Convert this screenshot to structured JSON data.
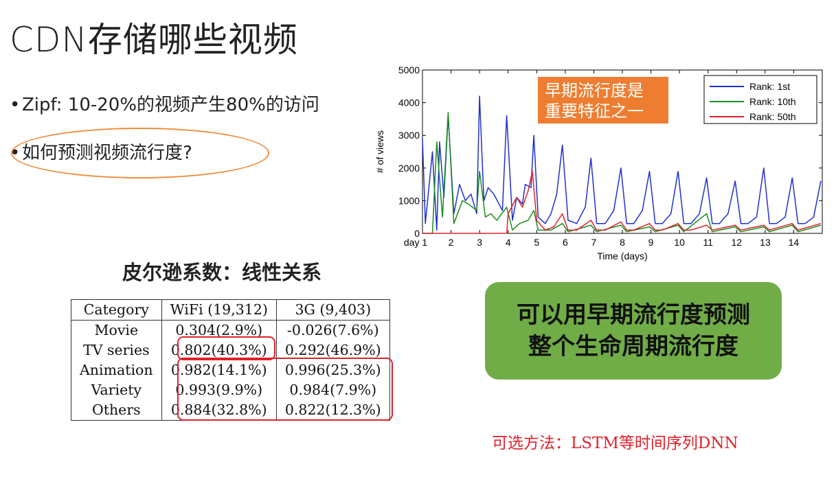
{
  "title": "CDN存储哪些视频",
  "bullets": [
    "Zipf: 10-20%的视频产生80%的访问",
    "如何预测视频流行度?"
  ],
  "bullet_symbol": "•",
  "pearson_title": "皮尔逊系数：线性关系",
  "table": {
    "headers": [
      "Category",
      "WiFi (19,312)",
      "3G (9,403)"
    ],
    "rows": [
      [
        "Movie",
        "0.304(2.9%)",
        "-0.026(7.6%)"
      ],
      [
        "TV series",
        "0.802(40.3%)",
        "0.292(46.9%)"
      ],
      [
        "Animation",
        "0.982(14.1%)",
        "0.996(25.3%)"
      ],
      [
        "Variety",
        "0.993(9.9%)",
        "0.984(7.9%)"
      ],
      [
        "Others",
        "0.884(32.8%)",
        "0.822(12.3%)"
      ]
    ]
  },
  "callout_orange": [
    "早期流行度是",
    "重要特征之一"
  ],
  "callout_green": [
    "可以用早期流行度预测",
    "整个生命周期流行度"
  ],
  "method": "可选方法：LSTM等时间序列DNN",
  "colors": {
    "orange": "#ee7d31",
    "green": "#70ad47",
    "red": "#e0202a",
    "blue": "#1f2fd0",
    "dark_green": "#1a8a1a"
  },
  "chart_data": {
    "type": "line",
    "xlabel": "Time (days)",
    "ylabel": "# of views",
    "xlim": [
      1,
      15
    ],
    "ylim": [
      0,
      5000
    ],
    "x_tick_labels": [
      "day 1",
      "2",
      "3",
      "4",
      "5",
      "6",
      "7",
      "8",
      "9",
      "10",
      "11",
      "12",
      "13",
      "14"
    ],
    "y_ticks": [
      0,
      1000,
      2000,
      3000,
      4000,
      5000
    ],
    "legend_position": "top-right",
    "series": [
      {
        "name": "Rank: 1st",
        "color": "#1f2fd0",
        "points": [
          [
            1,
            2900
          ],
          [
            1.1,
            300
          ],
          [
            1.35,
            2500
          ],
          [
            1.5,
            100
          ],
          [
            1.6,
            2800
          ],
          [
            1.75,
            1100
          ],
          [
            1.9,
            3600
          ],
          [
            2.1,
            600
          ],
          [
            2.3,
            1500
          ],
          [
            2.5,
            1000
          ],
          [
            2.7,
            1200
          ],
          [
            2.9,
            600
          ],
          [
            3.0,
            4200
          ],
          [
            3.15,
            1000
          ],
          [
            3.3,
            1400
          ],
          [
            3.5,
            1200
          ],
          [
            3.8,
            700
          ],
          [
            3.95,
            3600
          ],
          [
            4.15,
            400
          ],
          [
            4.3,
            1100
          ],
          [
            4.5,
            900
          ],
          [
            4.6,
            1500
          ],
          [
            4.8,
            1400
          ],
          [
            4.9,
            3000
          ],
          [
            5.05,
            500
          ],
          [
            5.3,
            300
          ],
          [
            5.5,
            600
          ],
          [
            5.7,
            1200
          ],
          [
            5.9,
            2700
          ],
          [
            6.1,
            400
          ],
          [
            6.4,
            300
          ],
          [
            6.7,
            800
          ],
          [
            6.9,
            2300
          ],
          [
            7.1,
            300
          ],
          [
            7.4,
            300
          ],
          [
            7.7,
            700
          ],
          [
            7.95,
            2000
          ],
          [
            8.15,
            300
          ],
          [
            8.4,
            300
          ],
          [
            8.7,
            700
          ],
          [
            8.95,
            1900
          ],
          [
            9.15,
            300
          ],
          [
            9.4,
            300
          ],
          [
            9.7,
            600
          ],
          [
            9.95,
            1900
          ],
          [
            10.15,
            300
          ],
          [
            10.4,
            300
          ],
          [
            10.7,
            600
          ],
          [
            10.95,
            1700
          ],
          [
            11.15,
            300
          ],
          [
            11.4,
            300
          ],
          [
            11.7,
            600
          ],
          [
            11.95,
            1600
          ],
          [
            12.15,
            300
          ],
          [
            12.4,
            300
          ],
          [
            12.7,
            500
          ],
          [
            12.95,
            2000
          ],
          [
            13.15,
            300
          ],
          [
            13.4,
            300
          ],
          [
            13.7,
            500
          ],
          [
            13.95,
            1700
          ],
          [
            14.15,
            300
          ],
          [
            14.4,
            300
          ],
          [
            14.7,
            500
          ],
          [
            14.95,
            1600
          ]
        ]
      },
      {
        "name": "Rank: 10th",
        "color": "#1a8a1a",
        "points": [
          [
            1,
            0
          ],
          [
            1.35,
            0
          ],
          [
            1.5,
            2800
          ],
          [
            1.7,
            500
          ],
          [
            1.9,
            3700
          ],
          [
            2.1,
            300
          ],
          [
            2.4,
            1000
          ],
          [
            2.6,
            900
          ],
          [
            2.9,
            700
          ],
          [
            3.0,
            1900
          ],
          [
            3.2,
            500
          ],
          [
            3.4,
            600
          ],
          [
            3.6,
            400
          ],
          [
            3.95,
            800
          ],
          [
            4.15,
            100
          ],
          [
            4.4,
            300
          ],
          [
            4.7,
            400
          ],
          [
            4.9,
            700
          ],
          [
            5.05,
            100
          ],
          [
            5.5,
            100
          ],
          [
            5.9,
            300
          ],
          [
            6.1,
            50
          ],
          [
            6.9,
            250
          ],
          [
            7.1,
            50
          ],
          [
            7.95,
            250
          ],
          [
            8.15,
            50
          ],
          [
            8.95,
            200
          ],
          [
            9.15,
            50
          ],
          [
            9.95,
            250
          ],
          [
            10.15,
            50
          ],
          [
            10.95,
            600
          ],
          [
            11.15,
            50
          ],
          [
            11.95,
            200
          ],
          [
            12.15,
            50
          ],
          [
            12.95,
            200
          ],
          [
            13.15,
            50
          ],
          [
            13.95,
            250
          ],
          [
            14.15,
            50
          ],
          [
            14.95,
            250
          ]
        ]
      },
      {
        "name": "Rank: 50th",
        "color": "#e0202a",
        "points": [
          [
            1,
            0
          ],
          [
            3.95,
            0
          ],
          [
            4.0,
            600
          ],
          [
            4.3,
            1100
          ],
          [
            4.5,
            800
          ],
          [
            4.7,
            1300
          ],
          [
            4.85,
            1900
          ],
          [
            5.0,
            400
          ],
          [
            5.3,
            100
          ],
          [
            5.6,
            200
          ],
          [
            5.9,
            600
          ],
          [
            6.1,
            100
          ],
          [
            6.4,
            100
          ],
          [
            6.9,
            400
          ],
          [
            7.1,
            100
          ],
          [
            7.4,
            100
          ],
          [
            7.95,
            350
          ],
          [
            8.15,
            100
          ],
          [
            8.4,
            100
          ],
          [
            8.95,
            300
          ],
          [
            9.15,
            100
          ],
          [
            9.4,
            100
          ],
          [
            9.95,
            300
          ],
          [
            10.15,
            100
          ],
          [
            10.4,
            100
          ],
          [
            10.95,
            250
          ],
          [
            11.15,
            100
          ],
          [
            11.95,
            250
          ],
          [
            12.15,
            100
          ],
          [
            12.95,
            250
          ],
          [
            13.15,
            100
          ],
          [
            13.95,
            300
          ],
          [
            14.15,
            100
          ],
          [
            14.95,
            300
          ]
        ]
      }
    ]
  }
}
